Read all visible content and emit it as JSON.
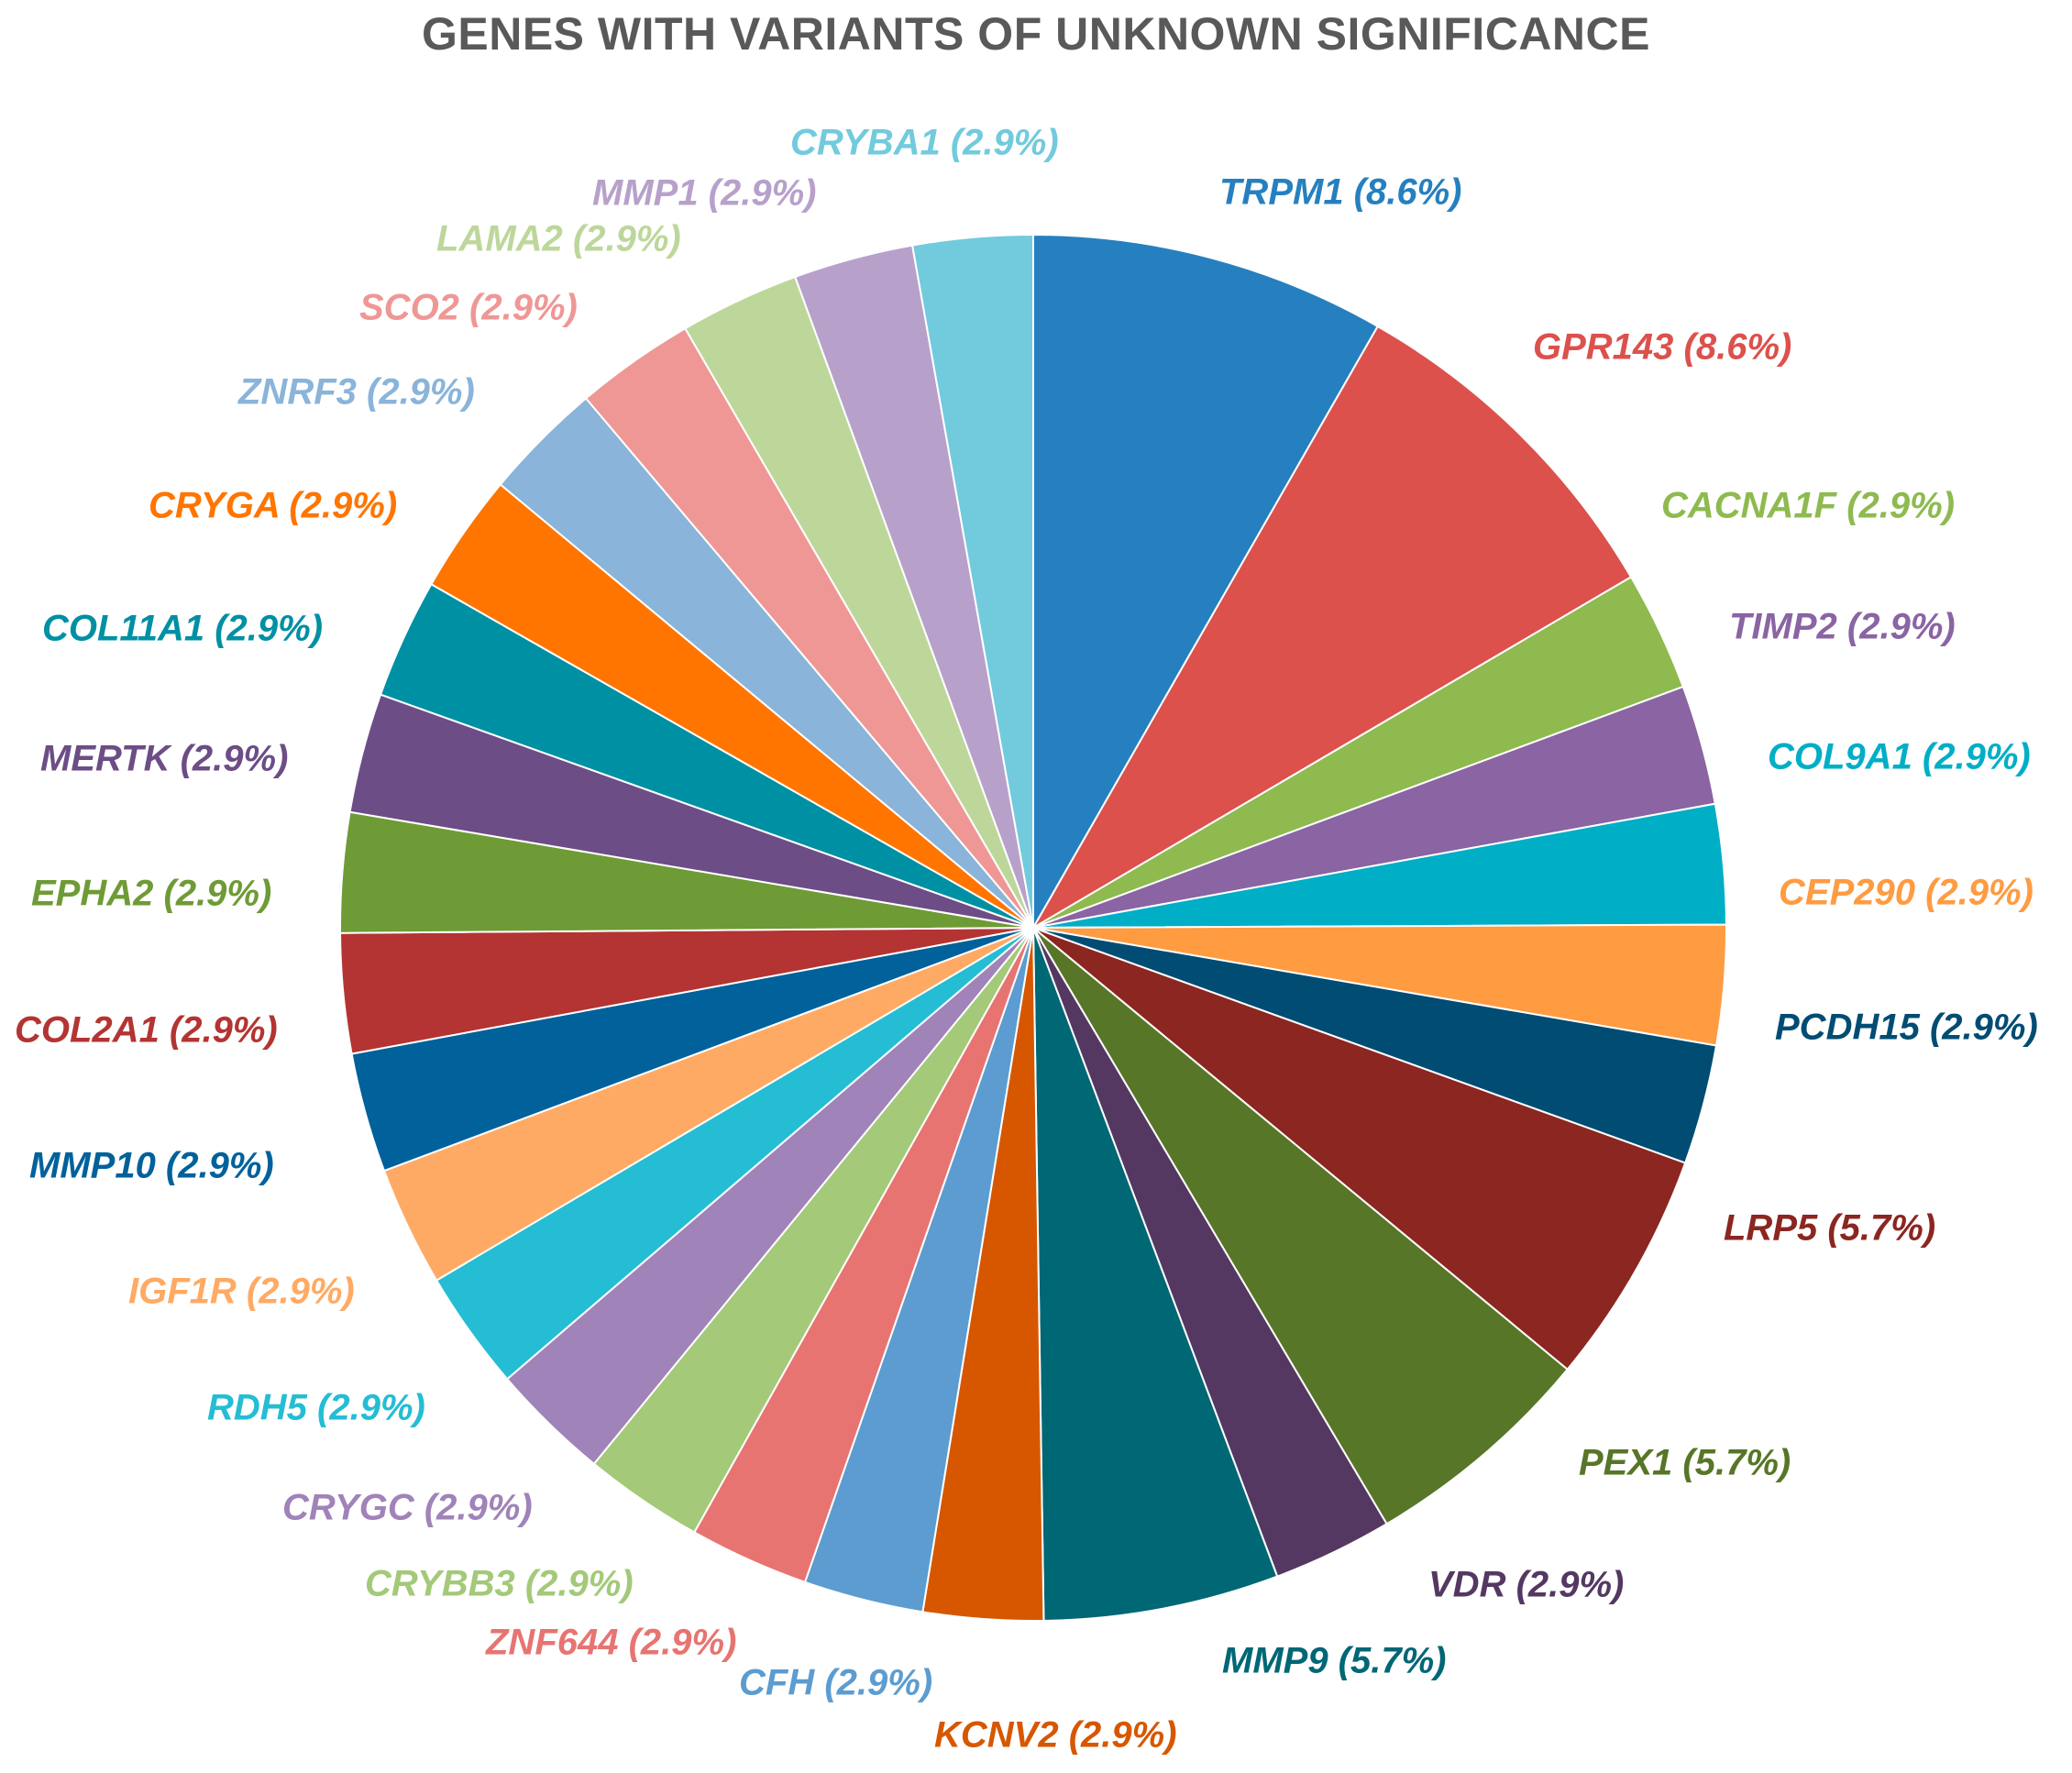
{
  "chart_data": {
    "type": "pie",
    "title": "GENES WITH VARIANTS OF UNKNOWN SIGNIFICANCE",
    "start_angle_deg": 0,
    "direction": "clockwise",
    "slices": [
      {
        "label": "TRPM1 (8.6%)",
        "value": 8.6,
        "color": "#2680BF"
      },
      {
        "label": "GPR143 (8.6%)",
        "value": 8.6,
        "color": "#DC514C"
      },
      {
        "label": "CACNA1F (2.9%)",
        "value": 2.9,
        "color": "#8EBA4F"
      },
      {
        "label": "TIMP2 (2.9%)",
        "value": 2.9,
        "color": "#8A64A3"
      },
      {
        "label": "COL9A1 (2.9%)",
        "value": 2.9,
        "color": "#00AEC6"
      },
      {
        "label": "CEP290 (2.9%)",
        "value": 2.9,
        "color": "#FF9B41"
      },
      {
        "label": "PCDH15 (2.9%)",
        "value": 2.9,
        "color": "#004C73"
      },
      {
        "label": "LRP5 (5.7%)",
        "value": 5.7,
        "color": "#8B2621"
      },
      {
        "label": "PEX1 (5.7%)",
        "value": 5.7,
        "color": "#577627"
      },
      {
        "label": "VDR (2.9%)",
        "value": 2.9,
        "color": "#543862"
      },
      {
        "label": "MMP9 (5.7%)",
        "value": 5.7,
        "color": "#006775"
      },
      {
        "label": "KCNV2 (2.9%)",
        "value": 2.9,
        "color": "#D75700"
      },
      {
        "label": "CFH (2.9%)",
        "value": 2.9,
        "color": "#5C9CD0"
      },
      {
        "label": "ZNF644 (2.9%)",
        "value": 2.9,
        "color": "#E77471"
      },
      {
        "label": "CRYBB3 (2.9%)",
        "value": 2.9,
        "color": "#A3C979"
      },
      {
        "label": "CRYGC (2.9%)",
        "value": 2.9,
        "color": "#A083B8"
      },
      {
        "label": "RDH5 (2.9%)",
        "value": 2.9,
        "color": "#24BDD4"
      },
      {
        "label": "IGF1R (2.9%)",
        "value": 2.9,
        "color": "#FFAA64"
      },
      {
        "label": "MMP10  (2.9%)",
        "value": 2.9,
        "color": "#00619B"
      },
      {
        "label": "COL2A1 (2.9%)",
        "value": 2.9,
        "color": "#B33432"
      },
      {
        "label": "EPHA2 (2.9%)",
        "value": 2.9,
        "color": "#6E9B35"
      },
      {
        "label": "MERTK (2.9%)",
        "value": 2.9,
        "color": "#6C4D86"
      },
      {
        "label": "COL11A1 (2.9%)",
        "value": 2.9,
        "color": "#0090A3"
      },
      {
        "label": "CRYGA (2.9%)",
        "value": 2.9,
        "color": "#FF7500"
      },
      {
        "label": "ZNRF3 (2.9%)",
        "value": 2.9,
        "color": "#8AB4D9"
      },
      {
        "label": "SCO2 (2.9%)",
        "value": 2.9,
        "color": "#EF9795"
      },
      {
        "label": "LAMA2 (2.9%)",
        "value": 2.9,
        "color": "#BDD79B"
      },
      {
        "label": "MMP1 (2.9%)",
        "value": 2.9,
        "color": "#B7A1CB"
      },
      {
        "label": "CRYBA1 (2.9%)",
        "value": 2.9,
        "color": "#72CADD"
      }
    ]
  }
}
